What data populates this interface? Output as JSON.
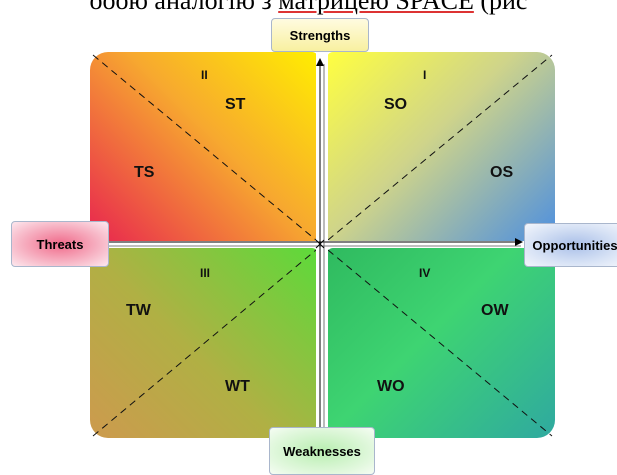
{
  "top_text": {
    "prefix": "ооою аналогію з ",
    "link": "матрицею SPACE",
    "suffix": " (рис"
  },
  "axes": {
    "top": "Strengths",
    "left": "Threats",
    "right": "Opportunities",
    "bottom": "Weaknesses"
  },
  "quadrants": {
    "q1": {
      "roman": "I",
      "upper": "SO",
      "lower": "OS"
    },
    "q2": {
      "roman": "II",
      "upper": "ST",
      "lower": "TS"
    },
    "q3": {
      "roman": "III",
      "upper": "TW",
      "lower": "WT"
    },
    "q4": {
      "roman": "IV",
      "upper": "OW",
      "lower": "WO"
    }
  },
  "colors": {
    "q1_start": "#ffff40",
    "q1_end": "#4d8fe0",
    "q2_start": "#ffee00",
    "q2_end": "#e8244f",
    "q3_start": "#cd9a4e",
    "q3_end": "#5cda3a",
    "q4_start": "#2fba5f",
    "q4_end": "#2fa9a0"
  }
}
